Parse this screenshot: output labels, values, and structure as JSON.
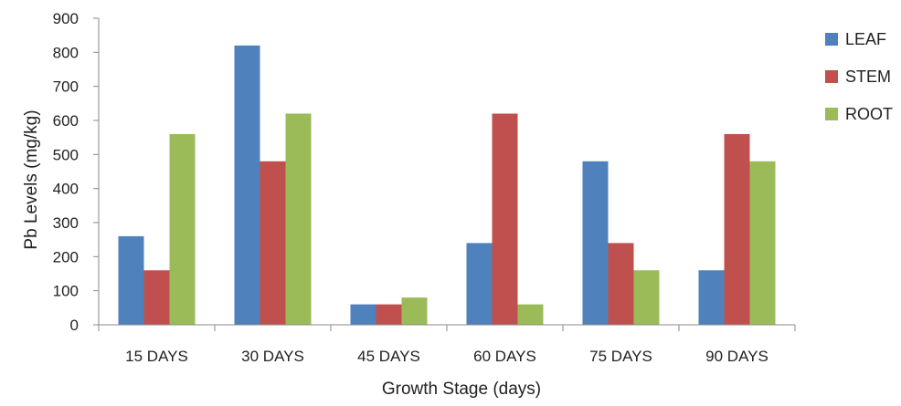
{
  "chart_data": {
    "type": "bar",
    "xlabel": "Growth Stage (days)",
    "ylabel": "Pb Levels (mg/kg)",
    "ylim": [
      0,
      900
    ],
    "yticks": [
      0,
      100,
      200,
      300,
      400,
      500,
      600,
      700,
      800,
      900
    ],
    "categories": [
      "15 DAYS",
      "30 DAYS",
      "45 DAYS",
      "60 DAYS",
      "75 DAYS",
      "90 DAYS"
    ],
    "series": [
      {
        "name": "LEAF",
        "color": "#4f81bd",
        "values": [
          260,
          820,
          60,
          240,
          480,
          160
        ]
      },
      {
        "name": "STEM",
        "color": "#c0504d",
        "values": [
          160,
          480,
          60,
          620,
          240,
          560
        ]
      },
      {
        "name": "ROOT",
        "color": "#9bbb59",
        "values": [
          560,
          620,
          80,
          60,
          160,
          480
        ]
      }
    ],
    "grid": false,
    "legend_position": "right"
  }
}
